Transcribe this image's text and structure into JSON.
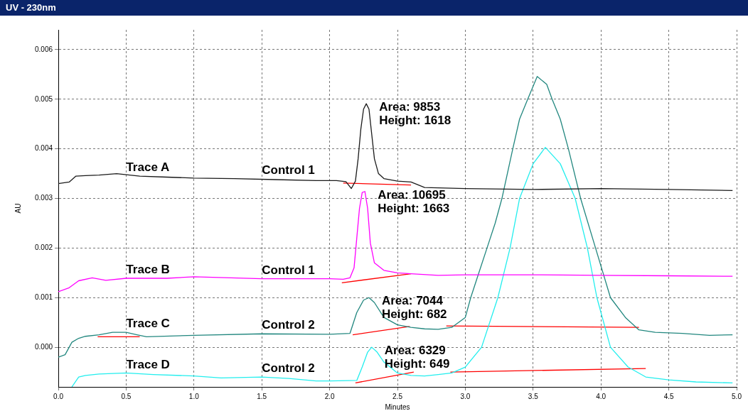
{
  "chart_data": {
    "type": "line",
    "title": "UV - 230nm",
    "xlabel": "Minutes",
    "ylabel": "AU",
    "xlim": [
      0,
      5
    ],
    "ylim": [
      -0.0008,
      0.0064
    ],
    "xticks": [
      {
        "value": 0,
        "label": "0.0"
      },
      0.5,
      {
        "value": 1,
        "label": "1.0"
      },
      1.5,
      {
        "value": 2,
        "label": "2.0"
      },
      2.5,
      {
        "value": 3,
        "label": "3.0"
      },
      3.5,
      {
        "value": 4,
        "label": "4.0"
      },
      4.5,
      {
        "value": 5,
        "label": "5.0"
      }
    ],
    "yticks": [
      {
        "value": 0,
        "label": "0.000"
      },
      0.001,
      0.002,
      0.003,
      0.004,
      0.005,
      0.006
    ],
    "grid": true,
    "legend": false,
    "marker": "none",
    "line_style": "solid",
    "series": [
      {
        "name": "Trace A",
        "color": "#1a1a1a",
        "x": [
          0,
          0.08,
          0.13,
          0.2,
          0.3,
          0.43,
          0.6,
          0.8,
          1.0,
          1.3,
          1.6,
          1.9,
          2.05,
          2.12,
          2.16,
          2.19,
          2.21,
          2.23,
          2.25,
          2.27,
          2.29,
          2.31,
          2.33,
          2.36,
          2.4,
          2.5,
          2.6,
          2.7,
          3.0,
          3.5,
          4.0,
          4.5,
          4.97
        ],
        "values": [
          0.0033,
          0.00333,
          0.00345,
          0.00346,
          0.00347,
          0.0035,
          0.00345,
          0.00343,
          0.00341,
          0.0034,
          0.00338,
          0.00336,
          0.00336,
          0.00334,
          0.0032,
          0.00335,
          0.0038,
          0.0044,
          0.0048,
          0.00491,
          0.0048,
          0.0043,
          0.0038,
          0.0035,
          0.0034,
          0.00335,
          0.00333,
          0.00322,
          0.0032,
          0.00318,
          0.0032,
          0.00318,
          0.00316
        ]
      },
      {
        "name": "Trace B",
        "color": "#ff00ff",
        "x": [
          0,
          0.08,
          0.15,
          0.25,
          0.35,
          0.5,
          0.8,
          1.0,
          1.5,
          2.0,
          2.1,
          2.15,
          2.18,
          2.2,
          2.22,
          2.24,
          2.26,
          2.28,
          2.3,
          2.33,
          2.4,
          2.5,
          2.6,
          2.8,
          3.0,
          3.5,
          4.0,
          4.5,
          4.97
        ],
        "values": [
          0.00112,
          0.0012,
          0.00134,
          0.0014,
          0.00135,
          0.00139,
          0.00139,
          0.00142,
          0.00138,
          0.00138,
          0.00137,
          0.0014,
          0.0016,
          0.0022,
          0.0028,
          0.00312,
          0.00314,
          0.0028,
          0.0021,
          0.0017,
          0.00155,
          0.0015,
          0.00148,
          0.00145,
          0.00146,
          0.00146,
          0.00145,
          0.00144,
          0.00143
        ]
      },
      {
        "name": "Trace C",
        "color": "#22877f",
        "x": [
          0,
          0.05,
          0.1,
          0.15,
          0.2,
          0.3,
          0.4,
          0.5,
          0.58,
          0.65,
          1.0,
          1.5,
          2.0,
          2.15,
          2.2,
          2.25,
          2.29,
          2.33,
          2.4,
          2.5,
          2.6,
          2.7,
          2.8,
          2.9,
          3.0,
          3.04,
          3.1,
          3.16,
          3.22,
          3.27,
          3.35,
          3.4,
          3.46,
          3.53,
          3.6,
          3.64,
          3.7,
          3.76,
          3.85,
          3.96,
          4.07,
          4.18,
          4.28,
          4.4,
          4.6,
          4.8,
          4.97
        ],
        "values": [
          -0.0002,
          -0.00015,
          0.0001,
          0.00018,
          0.00022,
          0.00025,
          0.0003,
          0.0003,
          0.00025,
          0.00021,
          0.00024,
          0.00027,
          0.00026,
          0.00028,
          0.0007,
          0.00095,
          0.001,
          0.0009,
          0.0006,
          0.00045,
          0.0004,
          0.00037,
          0.00036,
          0.0004,
          0.0006,
          0.001,
          0.0015,
          0.002,
          0.0025,
          0.003,
          0.004,
          0.0046,
          0.005,
          0.00546,
          0.0053,
          0.005,
          0.0046,
          0.004,
          0.003,
          0.002,
          0.001,
          0.0006,
          0.00035,
          0.0003,
          0.00028,
          0.00024,
          0.00025
        ]
      },
      {
        "name": "Trace D",
        "color": "#22eeee",
        "x": [
          0.1,
          0.15,
          0.2,
          0.3,
          0.5,
          0.7,
          1.0,
          1.2,
          1.5,
          1.7,
          1.9,
          2.0,
          2.2,
          2.24,
          2.28,
          2.31,
          2.35,
          2.4,
          2.5,
          2.6,
          2.7,
          2.8,
          2.9,
          3.0,
          3.12,
          3.24,
          3.33,
          3.4,
          3.5,
          3.59,
          3.7,
          3.81,
          3.9,
          3.97,
          4.07,
          4.2,
          4.33,
          4.5,
          4.7,
          4.97
        ],
        "values": [
          -0.0008,
          -0.0006,
          -0.00057,
          -0.00054,
          -0.00052,
          -0.00055,
          -0.00058,
          -0.00062,
          -0.0006,
          -0.00063,
          -0.00068,
          -0.00068,
          -0.00067,
          -0.0004,
          -0.0001,
          0,
          -0.0001,
          -0.0003,
          -0.00052,
          -0.00057,
          -0.00058,
          -0.00055,
          -0.00052,
          -0.0004,
          0,
          0.001,
          0.002,
          0.003,
          0.0037,
          0.00403,
          0.0037,
          0.003,
          0.002,
          0.001,
          0,
          -0.0004,
          -0.0006,
          -0.00066,
          -0.0007,
          -0.00072
        ]
      },
      {
        "color": "#ff0000",
        "x": [
          2.1,
          2.6
        ],
        "values": [
          0.00331,
          0.00327
        ]
      },
      {
        "color": "#ff0000",
        "x": [
          2.09,
          2.6
        ],
        "values": [
          0.0013,
          0.00148
        ]
      },
      {
        "color": "#ff0000",
        "x": [
          0.29,
          0.6
        ],
        "values": [
          0.00021,
          0.00021
        ]
      },
      {
        "color": "#ff0000",
        "x": [
          2.17,
          2.59
        ],
        "values": [
          0.00025,
          0.00042
        ]
      },
      {
        "color": "#ff0000",
        "x": [
          2.86,
          4.28
        ],
        "values": [
          0.00043,
          0.0004
        ]
      },
      {
        "color": "#ff0000",
        "x": [
          2.19,
          2.62
        ],
        "values": [
          -0.00072,
          -0.0005
        ]
      },
      {
        "color": "#ff0000",
        "x": [
          2.89,
          4.33
        ],
        "values": [
          -0.0005,
          -0.00043
        ]
      }
    ],
    "annotations": [
      {
        "text": "Control 1",
        "x": 1.5,
        "y": 0.0034
      },
      {
        "text": "Control 1",
        "x": 1.5,
        "y": 0.00138
      },
      {
        "text": "Control 2",
        "x": 1.5,
        "y": 0.00027
      },
      {
        "text": "Control 2",
        "x": 1.5,
        "y": -0.0006
      },
      {
        "text": "Area: 9853\nHeight: 1618",
        "x": 2.27,
        "y": 0.00491
      },
      {
        "text": "Area: 10695\nHeight: 1663",
        "x": 2.26,
        "y": 0.00314
      },
      {
        "text": "Area: 7044\nHeight: 682",
        "x": 2.29,
        "y": 0.001
      },
      {
        "text": "Area: 6329\nHeight: 649",
        "x": 2.31,
        "y": 0
      }
    ]
  }
}
